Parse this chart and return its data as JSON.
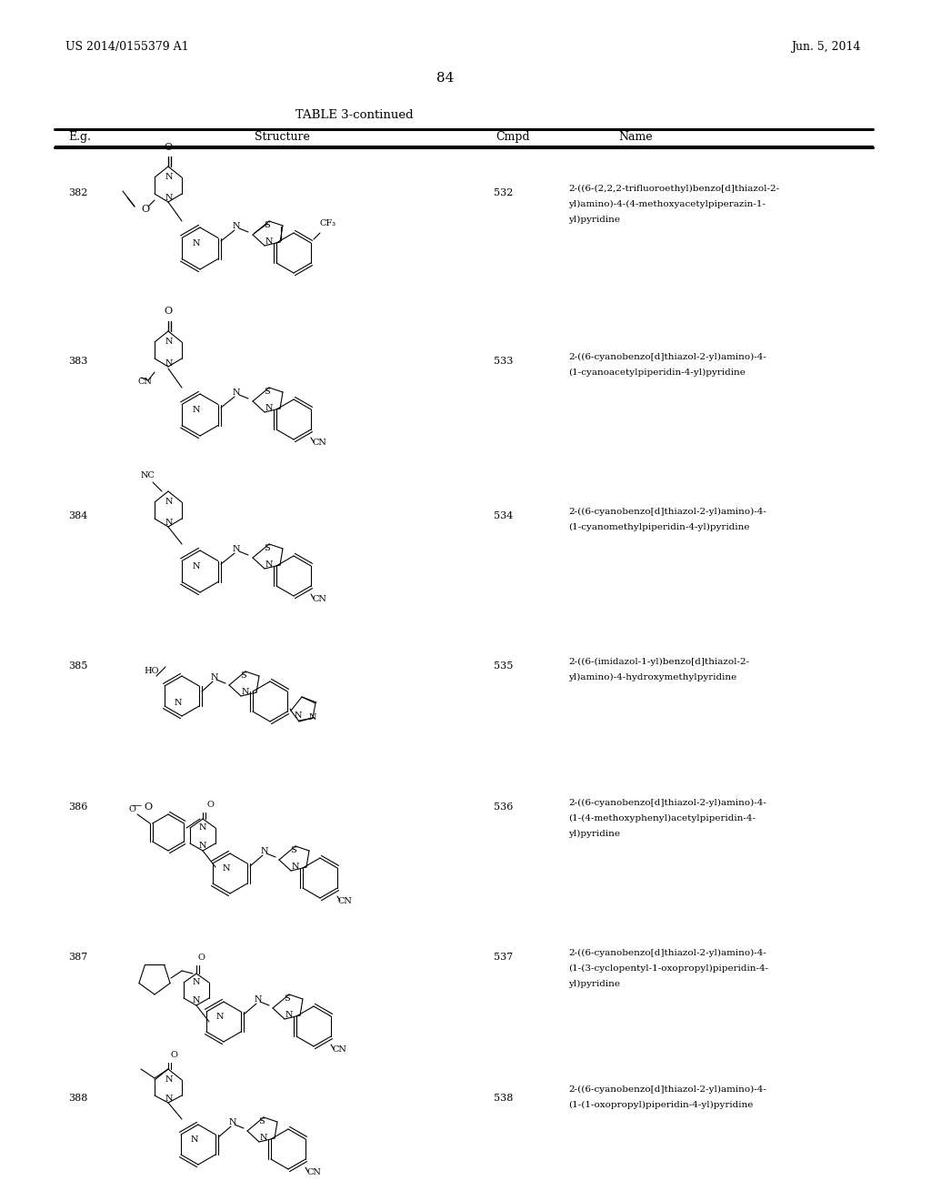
{
  "background_color": "#ffffff",
  "page_header_left": "US 2014/0155379 A1",
  "page_header_right": "Jun. 5, 2014",
  "page_number": "84",
  "table_title": "TABLE 3-continued",
  "col_headers": [
    "E.g.",
    "Structure",
    "Cmpd",
    "Name"
  ],
  "rows": [
    {
      "eg": "382",
      "cmpd": "532",
      "name": "2-((6-(2,2,2-trifluoroethyl)benzo[d]thiazol-2-\nyl)amino)-4-(4-methoxyacetylpiperazin-1-\nyl)pyridine",
      "img_label": "struct_382"
    },
    {
      "eg": "383",
      "cmpd": "533",
      "name": "2-((6-cyanobenzo[d]thiazol-2-yl)amino)-4-\n(1-cyanoacetylpiperidin-4-yl)pyridine",
      "img_label": "struct_383"
    },
    {
      "eg": "384",
      "cmpd": "534",
      "name": "2-((6-cyanobenzo[d]thiazol-2-yl)amino)-4-\n(1-cyanomethylpiperidin-4-yl)pyridine",
      "img_label": "struct_384"
    },
    {
      "eg": "385",
      "cmpd": "535",
      "name": "2-((6-(imidazol-1-yl)benzo[d]thiazol-2-\nyl)amino)-4-hydroxymethylpyridine",
      "img_label": "struct_385"
    },
    {
      "eg": "386",
      "cmpd": "536",
      "name": "2-((6-cyanobenzo[d]thiazol-2-yl)amino)-4-\n(1-(4-methoxyphenyl)acetylpiperidin-4-\nyl)pyridine",
      "img_label": "struct_386"
    },
    {
      "eg": "387",
      "cmpd": "537",
      "name": "2-((6-cyanobenzo[d]thiazol-2-yl)amino)-4-\n(1-(3-cyclopentyl-1-oxopropyl)piperidin-4-\nyl)pyridine",
      "img_label": "struct_387"
    },
    {
      "eg": "388",
      "cmpd": "538",
      "name": "2-((6-cyanobenzo[d]thiazol-2-yl)amino)-4-\n(1-(1-oxopropyl)piperidin-4-yl)pyridine",
      "img_label": "struct_388"
    }
  ],
  "font_size_header": 9,
  "font_size_body": 8,
  "font_size_page": 9,
  "text_color": "#000000",
  "line_color": "#000000"
}
